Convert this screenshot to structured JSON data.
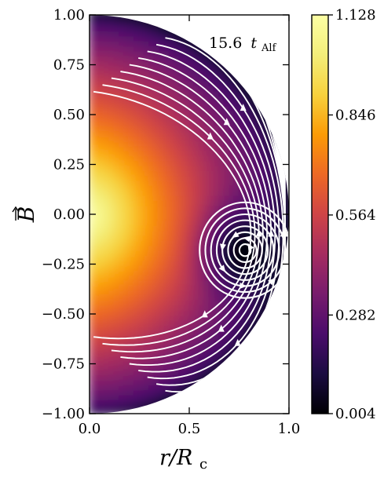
{
  "chart_data": {
    "type": "heatmap",
    "title": "",
    "annotation": {
      "value": "15.6",
      "symbol": "t",
      "subscript": "Alf"
    },
    "xlabel": {
      "main": "r/R",
      "subscript": "c"
    },
    "ylabel": "B",
    "ylabel_vector_arrow": true,
    "xlim": [
      0.0,
      1.0
    ],
    "ylim": [
      -1.0,
      1.0
    ],
    "xticks": [
      "0.0",
      "0.5",
      "1.0"
    ],
    "yticks": [
      "1.00",
      "0.75",
      "0.50",
      "0.25",
      "0.00",
      "−0.25",
      "−0.50",
      "−0.75",
      "−1.00"
    ],
    "domain": "half-disk of radius 1",
    "colormap": "inferno",
    "colorbar": {
      "min": 0.004,
      "max": 1.128,
      "ticks": [
        "1.128",
        "0.846",
        "0.564",
        "0.282",
        "0.004"
      ]
    },
    "field_peak": {
      "x": 0.0,
      "y": 0.0,
      "value": 1.128
    },
    "o_point": {
      "x": 0.78,
      "y": -0.18,
      "value": 0.004
    },
    "streamlines": {
      "color": "#ffffff",
      "style": "with-arrows"
    },
    "grid": false
  }
}
